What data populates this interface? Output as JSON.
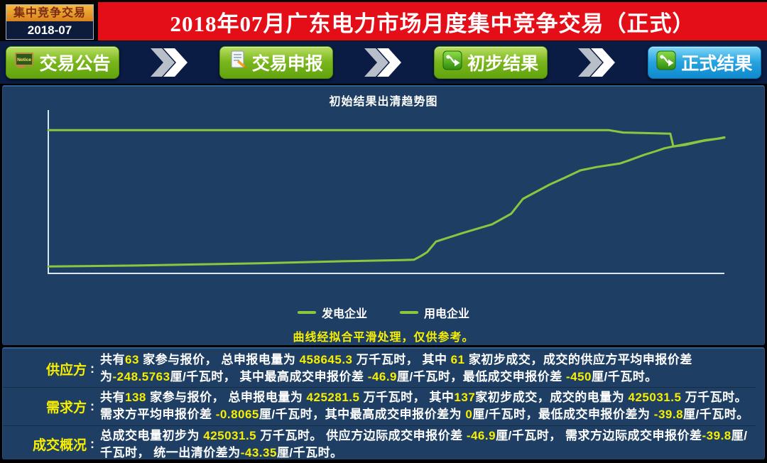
{
  "badge": {
    "title": "集中竞争交易",
    "period": "2018-07"
  },
  "header": {
    "title": "2018年07月广东电力市场月度集中竞争交易（正式）"
  },
  "nav": {
    "notice_icon_text": "Notice",
    "buttons": [
      {
        "label": "交易公告"
      },
      {
        "label": "交易申报"
      },
      {
        "label": "初步结果"
      },
      {
        "label": "正式结果"
      }
    ]
  },
  "chart": {
    "note": "曲线经拟合平滑处理，仅供参考。"
  },
  "chart_data": {
    "type": "line",
    "title": "初始结果出清趋势图",
    "xlabel": "",
    "ylabel": "",
    "xlim": [
      0,
      458645
    ],
    "ylim": [
      -473,
      66
    ],
    "grid": false,
    "legend_position": "bottom",
    "series": [
      {
        "name": "发电企业",
        "color": "#8cc63f",
        "points": [
          [
            0,
            -450
          ],
          [
            60000,
            -447
          ],
          [
            140000,
            -440
          ],
          [
            200000,
            -433
          ],
          [
            240000,
            -429
          ],
          [
            248000,
            -428
          ],
          [
            253000,
            -415
          ],
          [
            257000,
            -403
          ],
          [
            263000,
            -368
          ],
          [
            281000,
            -340
          ],
          [
            301000,
            -311
          ],
          [
            314000,
            -276
          ],
          [
            322000,
            -227
          ],
          [
            340000,
            -180
          ],
          [
            350000,
            -158
          ],
          [
            361000,
            -133
          ],
          [
            372000,
            -122
          ],
          [
            388000,
            -110
          ],
          [
            394000,
            -100
          ],
          [
            404000,
            -82
          ],
          [
            412000,
            -70
          ],
          [
            418000,
            -60
          ],
          [
            424000,
            -54
          ],
          [
            435000,
            -44
          ],
          [
            446000,
            -33
          ],
          [
            455000,
            -28
          ],
          [
            458645,
            -25
          ]
        ]
      },
      {
        "name": "用电企业",
        "color": "#8cc63f",
        "points": [
          [
            0,
            0
          ],
          [
            380000,
            0
          ],
          [
            390000,
            -8
          ],
          [
            422000,
            -12
          ],
          [
            424000,
            -54
          ],
          [
            432000,
            -49
          ],
          [
            444000,
            -36
          ],
          [
            452000,
            -30
          ],
          [
            458645,
            -24
          ]
        ]
      }
    ]
  },
  "summary": {
    "colon": ":",
    "rows": [
      {
        "label": "供应方",
        "segments": [
          {
            "t": "共有",
            "h": false
          },
          {
            "t": "63",
            "h": true
          },
          {
            "t": " 家参与报价， 总申报电量为 ",
            "h": false
          },
          {
            "t": "458645.3",
            "h": true
          },
          {
            "t": " 万千瓦时， 其中 ",
            "h": false
          },
          {
            "t": "61",
            "h": true
          },
          {
            "t": " 家初步成交，成交的供应方平均申报价差为",
            "h": false
          },
          {
            "t": "-248.5763",
            "h": true
          },
          {
            "t": "厘/千瓦时， 其中最高成交申报价差 ",
            "h": false
          },
          {
            "t": "-46.9",
            "h": true
          },
          {
            "t": "厘/千瓦时，最低成交申报价差 ",
            "h": false
          },
          {
            "t": "-450",
            "h": true
          },
          {
            "t": "厘/千瓦时。",
            "h": false
          }
        ]
      },
      {
        "label": "需求方",
        "segments": [
          {
            "t": "共有",
            "h": false
          },
          {
            "t": "138",
            "h": true
          },
          {
            "t": " 家参与报价， 总申报电量为 ",
            "h": false
          },
          {
            "t": "425281.5",
            "h": true
          },
          {
            "t": " 万千瓦时， 其中",
            "h": false
          },
          {
            "t": "137",
            "h": true
          },
          {
            "t": "家初步成交，成交的电量为 ",
            "h": false
          },
          {
            "t": "425031.5",
            "h": true
          },
          {
            "t": " 万千瓦时。 需求方平均申报价差 ",
            "h": false
          },
          {
            "t": "-0.8065",
            "h": true
          },
          {
            "t": "厘/千瓦时，其中最高成交申报价差为 ",
            "h": false
          },
          {
            "t": "0",
            "h": true
          },
          {
            "t": "厘/千瓦时，最低成交申报价差为 ",
            "h": false
          },
          {
            "t": "-39.8",
            "h": true
          },
          {
            "t": "厘/千瓦时。",
            "h": false
          }
        ]
      },
      {
        "label": "成交概况",
        "segments": [
          {
            "t": "总成交电量初步为 ",
            "h": false
          },
          {
            "t": "425031.5",
            "h": true
          },
          {
            "t": " 万千瓦时。 供应方边际成交申报价差 ",
            "h": false
          },
          {
            "t": "-46.9",
            "h": true
          },
          {
            "t": "厘/千瓦时， 需求方边际成交申报价差",
            "h": false
          },
          {
            "t": "-39.8",
            "h": true
          },
          {
            "t": "厘/千瓦时， 统一出清价差为",
            "h": false
          },
          {
            "t": "-43.35",
            "h": true
          },
          {
            "t": "厘/千瓦时。",
            "h": false
          }
        ]
      }
    ]
  },
  "colors": {
    "header_red": "#e40e18",
    "nav_bg": "#0a1c44",
    "panel_navy": "#1e3f63",
    "button_green": "#7ab61c",
    "button_blue": "#27a3e0",
    "line_green": "#8cc63f",
    "highlight_yellow": "#f8ee00",
    "note_yellow": "#f8f000"
  }
}
